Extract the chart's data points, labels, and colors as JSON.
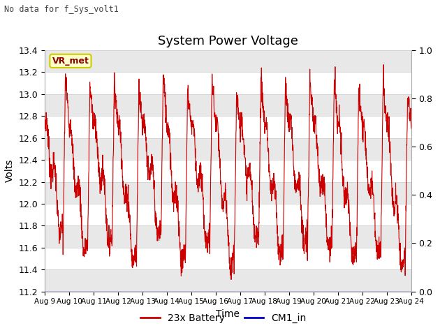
{
  "title": "System Power Voltage",
  "xlabel": "Time",
  "ylabel": "Volts",
  "top_left_text": "No data for f_Sys_volt1",
  "annotation_text": "VR_met",
  "ylim_left": [
    11.2,
    13.4
  ],
  "ylim_right": [
    0.0,
    1.0
  ],
  "yticks_left": [
    11.2,
    11.4,
    11.6,
    11.8,
    12.0,
    12.2,
    12.4,
    12.6,
    12.8,
    13.0,
    13.2,
    13.4
  ],
  "yticks_right": [
    0.0,
    0.2,
    0.4,
    0.6,
    0.8,
    1.0
  ],
  "xtick_labels": [
    "Aug 9",
    "Aug 10",
    "Aug 11",
    "Aug 12",
    "Aug 13",
    "Aug 14",
    "Aug 15",
    "Aug 16",
    "Aug 17",
    "Aug 18",
    "Aug 19",
    "Aug 20",
    "Aug 21",
    "Aug 22",
    "Aug 23",
    "Aug 24"
  ],
  "line_color_battery": "#cc0000",
  "line_color_cm1": "#0000cc",
  "plot_bg": "#ffffff",
  "band_color": "#e8e8e8",
  "legend_labels": [
    "23x Battery",
    "CM1_in"
  ],
  "legend_colors": [
    "#cc0000",
    "#0000cc"
  ],
  "annotation_fg": "#880000",
  "annotation_bg": "#ffffcc",
  "annotation_edge": "#cccc00",
  "top_text_color": "#444444",
  "title_fontsize": 13,
  "label_fontsize": 9,
  "ylabel_fontsize": 10
}
